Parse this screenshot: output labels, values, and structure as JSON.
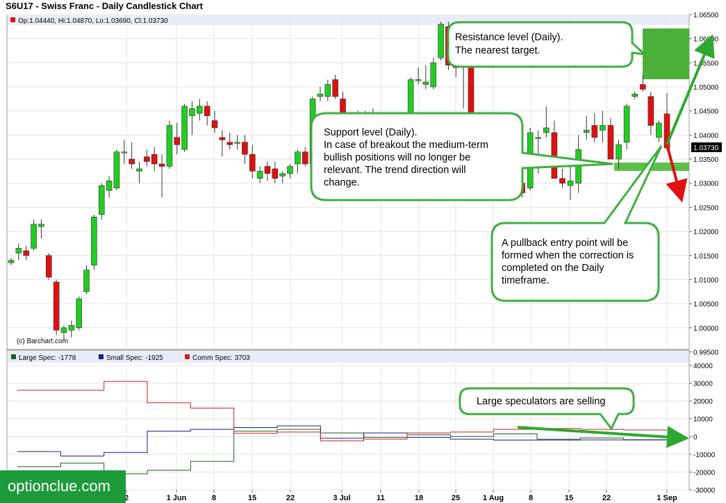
{
  "title": "S6U17 - Swiss Franc - Daily Candlestick Chart",
  "ohlc_label": "Op:1.04440, Hi:1.04870, Lo:1.03690, Cl:1.03730",
  "copyright": "(c) Barchart.com",
  "last_price_label": "1.03730",
  "watermark": "optionclue.com",
  "callouts": {
    "resistance": [
      "Resistance level (Daily).",
      "The nearest target."
    ],
    "support": [
      "Support level (Daily).",
      "In case of breakout the medium-term",
      "bullish positions will no longer be",
      "relevant. The trend direction will",
      "change."
    ],
    "pullback": [
      "A pullback entry point will be",
      "formed when the correction is",
      "completed on the Daily",
      "timeframe."
    ],
    "speculators": [
      "Large speculators are selling"
    ]
  },
  "colors": {
    "bull": "#22cc22",
    "bear": "#dd1111",
    "resistance_zone": "#4caf3a",
    "support_zone": "#5cc24a",
    "arrow_green": "#2ea82e",
    "arrow_red": "#e01010",
    "large_spec": "#1e5e1e",
    "small_spec": "#1a1a8c",
    "comm_spec": "#cc2020",
    "callout_border": "#3fae3f"
  },
  "chart_data": [
    {
      "type": "candlestick",
      "title": "S6U17 - Swiss Franc - Daily Candlestick Chart",
      "ylim": [
        0.9955,
        1.065
      ],
      "y_ticks": [
        "1.06500",
        "1.06000",
        "1.05500",
        "1.05000",
        "1.04500",
        "1.04000",
        "1.03500",
        "1.03000",
        "1.02500",
        "1.02000",
        "1.01500",
        "1.01000",
        "1.00500",
        "1.00000",
        "0.99500"
      ],
      "x_ticks": [
        "2",
        "1 Jun",
        "8",
        "15",
        "22",
        "3 Jul",
        "11",
        "18",
        "25",
        "1 Aug",
        "8",
        "15",
        "22",
        "1 Sep"
      ],
      "last_close": 1.0373,
      "candles": [
        [
          1.0135,
          1.0145,
          1.013,
          1.014
        ],
        [
          1.0155,
          1.0175,
          1.014,
          1.0165
        ],
        [
          1.016,
          1.017,
          1.014,
          1.015
        ],
        [
          1.0165,
          1.0225,
          1.016,
          1.0215
        ],
        [
          1.021,
          1.0225,
          1.0185,
          1.0215
        ],
        [
          1.015,
          1.0155,
          1.01,
          1.0105
        ],
        [
          1.0095,
          1.01,
          0.9985,
          0.9995
        ],
        [
          0.999,
          1.0005,
          0.9975,
          1.0
        ],
        [
          0.9995,
          1.0015,
          0.998,
          1.0005
        ],
        [
          1.0,
          1.0065,
          0.9995,
          1.006
        ],
        [
          1.0075,
          1.013,
          1.007,
          1.012
        ],
        [
          1.013,
          1.0235,
          1.012,
          1.023
        ],
        [
          1.0235,
          1.03,
          1.0225,
          1.0295
        ],
        [
          1.0285,
          1.0315,
          1.027,
          1.0305
        ],
        [
          1.029,
          1.037,
          1.0285,
          1.0365
        ],
        [
          1.0365,
          1.039,
          1.034,
          1.0365
        ],
        [
          1.035,
          1.0385,
          1.033,
          1.034
        ],
        [
          1.0325,
          1.0345,
          1.03,
          1.033
        ],
        [
          1.0355,
          1.037,
          1.0335,
          1.0345
        ],
        [
          1.036,
          1.0375,
          1.0325,
          1.034
        ],
        [
          1.034,
          1.036,
          1.027,
          1.0335
        ],
        [
          1.0335,
          1.043,
          1.033,
          1.042
        ],
        [
          1.0395,
          1.0425,
          1.036,
          1.038
        ],
        [
          1.037,
          1.0465,
          1.0365,
          1.046
        ],
        [
          1.044,
          1.047,
          1.04,
          1.0455
        ],
        [
          1.0445,
          1.0475,
          1.043,
          1.046
        ],
        [
          1.046,
          1.047,
          1.042,
          1.044
        ],
        [
          1.043,
          1.045,
          1.0405,
          1.0415
        ],
        [
          1.0395,
          1.041,
          1.0355,
          1.039
        ],
        [
          1.0385,
          1.0405,
          1.037,
          1.038
        ],
        [
          1.0385,
          1.04,
          1.037,
          1.0385
        ],
        [
          1.0385,
          1.04,
          1.034,
          1.036
        ],
        [
          1.036,
          1.038,
          1.031,
          1.0325
        ],
        [
          1.031,
          1.0335,
          1.03,
          1.0325
        ],
        [
          1.0335,
          1.0345,
          1.0305,
          1.032
        ],
        [
          1.033,
          1.0345,
          1.03,
          1.031
        ],
        [
          1.0315,
          1.0325,
          1.03,
          1.032
        ],
        [
          1.032,
          1.034,
          1.031,
          1.0335
        ],
        [
          1.034,
          1.037,
          1.032,
          1.0365
        ],
        [
          1.0365,
          1.0375,
          1.0335,
          1.034
        ],
        [
          1.034,
          1.048,
          1.033,
          1.0475
        ],
        [
          1.048,
          1.05,
          1.047,
          1.0485
        ],
        [
          1.048,
          1.0515,
          1.047,
          1.0505
        ],
        [
          1.0515,
          1.0525,
          1.0475,
          1.048
        ],
        [
          1.0475,
          1.049,
          1.0405,
          1.042
        ],
        [
          1.042,
          1.0445,
          1.04,
          1.044
        ],
        [
          1.044,
          1.045,
          1.0405,
          1.0445
        ],
        [
          1.0435,
          1.045,
          1.042,
          1.044
        ],
        [
          1.044,
          1.0455,
          1.0415,
          1.043
        ],
        [
          1.043,
          1.0445,
          1.0415,
          1.0425
        ],
        [
          1.042,
          1.043,
          1.0395,
          1.0405
        ],
        [
          1.0405,
          1.0425,
          1.037,
          1.0415
        ],
        [
          1.0415,
          1.043,
          1.0385,
          1.04
        ],
        [
          1.04,
          1.052,
          1.039,
          1.0515
        ],
        [
          1.0515,
          1.054,
          1.0505,
          1.0515
        ],
        [
          1.0505,
          1.0545,
          1.0495,
          1.051
        ],
        [
          1.05,
          1.056,
          1.0495,
          1.055
        ],
        [
          1.056,
          1.0635,
          1.0555,
          1.063
        ],
        [
          1.0625,
          1.0635,
          1.0535,
          1.0545
        ],
        [
          1.055,
          1.0565,
          1.052,
          1.054
        ],
        [
          1.0545,
          1.056,
          1.0455,
          1.054
        ],
        [
          1.054,
          1.0555,
          1.0405,
          1.0415
        ]
      ],
      "candles_right": [
        [
          1.029,
          1.031,
          1.0265,
          1.0295
        ],
        [
          1.03,
          1.032,
          1.027,
          1.028
        ],
        [
          1.029,
          1.0415,
          1.0285,
          1.0405
        ],
        [
          1.0395,
          1.041,
          1.032,
          1.0395
        ],
        [
          1.0405,
          1.046,
          1.0395,
          1.0415
        ],
        [
          1.0405,
          1.043,
          1.032,
          1.031
        ],
        [
          1.031,
          1.033,
          1.029,
          1.03
        ],
        [
          1.0295,
          1.0345,
          1.0265,
          1.0305
        ],
        [
          1.03,
          1.04,
          1.028,
          1.037
        ],
        [
          1.0405,
          1.044,
          1.039,
          1.041
        ],
        [
          1.042,
          1.0445,
          1.0385,
          1.0395
        ],
        [
          1.041,
          1.045,
          1.0385,
          1.042
        ],
        [
          1.042,
          1.0435,
          1.038,
          1.035
        ],
        [
          1.035,
          1.039,
          1.033,
          1.038
        ],
        [
          1.0385,
          1.0465,
          1.037,
          1.046
        ],
        [
          1.048,
          1.049,
          1.0475,
          1.0485
        ],
        [
          1.0505,
          1.0525,
          1.049,
          1.0495
        ],
        [
          1.048,
          1.049,
          1.04,
          1.042
        ],
        [
          1.0395,
          1.043,
          1.0385,
          1.0425
        ],
        [
          1.0444,
          1.0487,
          1.0369,
          1.0373
        ]
      ]
    },
    {
      "type": "line",
      "title": "COT",
      "ylim": [
        -30000,
        40000
      ],
      "y_ticks": [
        "40000",
        "30000",
        "20000",
        "10000",
        "0",
        "-10000",
        "-20000",
        "-30000"
      ],
      "series": [
        {
          "name": "Large Spec: -1778",
          "values": [
            -17000,
            -15000,
            -21000,
            -19000,
            -14000,
            3000,
            4000,
            2000,
            -500,
            1000,
            0,
            1500,
            -1500,
            -800,
            -1778
          ]
        },
        {
          "name": "Small Spec: -1925",
          "values": [
            -8500,
            -11000,
            -9000,
            3000,
            4000,
            5000,
            6000,
            -1000,
            2000,
            -500,
            -1500,
            -2000,
            -2000,
            -1900,
            -1925
          ]
        },
        {
          "name": "Comm Spec: 3703",
          "values": [
            26000,
            26000,
            31000,
            19000,
            16000,
            1800,
            2500,
            -2500,
            -1500,
            2000,
            2500,
            4000,
            4500,
            4000,
            3703
          ]
        }
      ]
    }
  ]
}
